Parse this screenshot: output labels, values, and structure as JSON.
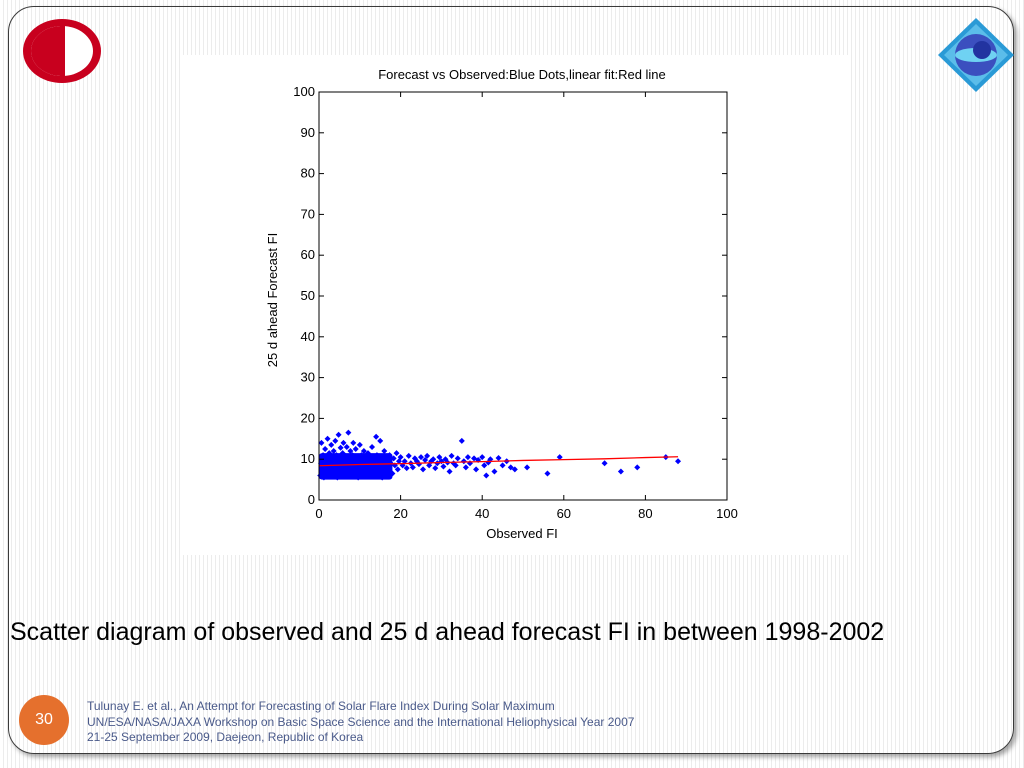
{
  "slide": {
    "caption": "Scatter diagram of observed and 25 d ahead forecast FI in between 1998-2002",
    "page_number": "30",
    "footer": [
      "Tulunay E. et al., An Attempt for Forecasting of Solar Flare Index During Solar Maximum",
      "UN/ESA/NASA/JAXA Workshop on Basic Space Science and the International Heliophysical Year 2007",
      "21-25 September 2009, Daejeon, Republic of Korea"
    ],
    "colors": {
      "accent": "#e5702d",
      "footer_text": "#4a5a8a",
      "left_logo": "#c8001e",
      "right_logo": "#2a9ad6"
    },
    "icons": {
      "left_logo": "university-logo-icon",
      "right_logo": "organization-logo-icon"
    }
  },
  "chart_data": {
    "type": "scatter",
    "title": "Forecast vs Observed:Blue Dots,linear fit:Red line",
    "xlabel": "Observed FI",
    "ylabel": "25 d ahead Forecast FI",
    "xlim": [
      0,
      100
    ],
    "ylim": [
      0,
      100
    ],
    "xticks": [
      "0",
      "20",
      "40",
      "60",
      "80",
      "100"
    ],
    "yticks": [
      "0",
      "10",
      "20",
      "30",
      "40",
      "50",
      "60",
      "70",
      "80",
      "90",
      "100"
    ],
    "grid": false,
    "series": [
      {
        "kind": "points",
        "color": "#0000ff",
        "marker": "diamond",
        "points": [
          [
            0.3,
            6
          ],
          [
            0.5,
            9
          ],
          [
            0.6,
            14
          ],
          [
            0.8,
            7.5
          ],
          [
            1,
            11
          ],
          [
            1.2,
            5.5
          ],
          [
            1.3,
            8
          ],
          [
            1.5,
            12.5
          ],
          [
            1.6,
            10
          ],
          [
            1.8,
            6.5
          ],
          [
            2,
            9.5
          ],
          [
            2.1,
            15
          ],
          [
            2.3,
            7
          ],
          [
            2.5,
            11.5
          ],
          [
            2.6,
            5.8
          ],
          [
            2.8,
            8.8
          ],
          [
            3,
            13.5
          ],
          [
            3.1,
            10.5
          ],
          [
            3.3,
            6.2
          ],
          [
            3.5,
            9
          ],
          [
            3.6,
            12
          ],
          [
            3.8,
            7.8
          ],
          [
            4,
            14.5
          ],
          [
            4.1,
            8.5
          ],
          [
            4.3,
            11
          ],
          [
            4.5,
            5.5
          ],
          [
            4.6,
            10
          ],
          [
            4.8,
            16
          ],
          [
            5,
            7
          ],
          [
            5.1,
            9.5
          ],
          [
            5.3,
            12.8
          ],
          [
            5.5,
            6.5
          ],
          [
            5.6,
            8
          ],
          [
            5.8,
            11.5
          ],
          [
            6,
            14
          ],
          [
            6.1,
            9
          ],
          [
            6.3,
            7.2
          ],
          [
            6.5,
            10.8
          ],
          [
            6.6,
            5.8
          ],
          [
            6.8,
            13
          ],
          [
            7,
            8.5
          ],
          [
            7.2,
            16.5
          ],
          [
            7.3,
            10
          ],
          [
            7.5,
            6.8
          ],
          [
            7.7,
            12
          ],
          [
            7.8,
            9.2
          ],
          [
            8,
            7.5
          ],
          [
            8.2,
            11
          ],
          [
            8.4,
            14
          ],
          [
            8.5,
            6
          ],
          [
            8.7,
            9.8
          ],
          [
            8.9,
            8
          ],
          [
            9,
            12.5
          ],
          [
            9.2,
            7
          ],
          [
            9.4,
            10.5
          ],
          [
            9.6,
            5.5
          ],
          [
            9.8,
            9
          ],
          [
            10,
            13.5
          ],
          [
            10.2,
            8.2
          ],
          [
            10.4,
            11
          ],
          [
            10.6,
            6.5
          ],
          [
            10.8,
            9.5
          ],
          [
            11,
            12
          ],
          [
            11.2,
            7.8
          ],
          [
            11.4,
            10
          ],
          [
            11.6,
            8.8
          ],
          [
            11.8,
            6.2
          ],
          [
            12,
            11.5
          ],
          [
            12.3,
            9
          ],
          [
            12.5,
            7
          ],
          [
            12.8,
            10.5
          ],
          [
            13,
            13
          ],
          [
            13.2,
            8
          ],
          [
            13.5,
            6.5
          ],
          [
            13.8,
            9.5
          ],
          [
            14,
            15.5
          ],
          [
            14.2,
            11
          ],
          [
            14.5,
            7.5
          ],
          [
            14.8,
            10
          ],
          [
            15,
            14.5
          ],
          [
            15.2,
            8.5
          ],
          [
            15.5,
            5.5
          ],
          [
            15.8,
            9.8
          ],
          [
            16,
            12
          ],
          [
            16.3,
            7.2
          ],
          [
            16.6,
            10.5
          ],
          [
            17,
            8
          ],
          [
            17.3,
            11
          ],
          [
            17.6,
            9
          ],
          [
            18,
            6.5
          ],
          [
            18.3,
            10.2
          ],
          [
            18.6,
            8.5
          ],
          [
            19,
            11.5
          ],
          [
            19.3,
            7.5
          ],
          [
            19.6,
            9.5
          ],
          [
            20,
            10.5
          ],
          [
            20.5,
            8.5
          ],
          [
            21,
            9.5
          ],
          [
            21.5,
            7.8
          ],
          [
            22,
            10.8
          ],
          [
            22.5,
            9
          ],
          [
            23,
            8
          ],
          [
            23.5,
            10.2
          ],
          [
            24,
            9.5
          ],
          [
            24.5,
            8.8
          ],
          [
            25,
            10.5
          ],
          [
            25.5,
            7.5
          ],
          [
            26,
            9.8
          ],
          [
            26.5,
            10.8
          ],
          [
            27,
            8.5
          ],
          [
            27.5,
            9.5
          ],
          [
            28,
            10
          ],
          [
            28.5,
            7.8
          ],
          [
            29,
            9
          ],
          [
            29.5,
            10.5
          ],
          [
            30,
            9.5
          ],
          [
            30.5,
            8.2
          ],
          [
            31,
            10
          ],
          [
            31.5,
            9.2
          ],
          [
            32,
            7
          ],
          [
            32.5,
            10.8
          ],
          [
            33,
            9
          ],
          [
            33.5,
            8.5
          ],
          [
            34,
            10.2
          ],
          [
            35,
            14.5
          ],
          [
            35.5,
            9.5
          ],
          [
            36,
            8
          ],
          [
            36.5,
            10.5
          ],
          [
            37,
            9
          ],
          [
            38,
            10.2
          ],
          [
            38.5,
            7.5
          ],
          [
            39,
            9.8
          ],
          [
            40,
            10.5
          ],
          [
            40.5,
            8.5
          ],
          [
            41,
            6
          ],
          [
            41.5,
            9.2
          ],
          [
            42,
            10
          ],
          [
            43,
            7
          ],
          [
            44,
            10.3
          ],
          [
            45,
            8.5
          ],
          [
            46,
            9.5
          ],
          [
            47,
            8
          ],
          [
            48,
            7.5
          ],
          [
            51,
            8
          ],
          [
            56,
            6.5
          ],
          [
            59,
            10.5
          ],
          [
            70,
            9
          ],
          [
            74,
            7
          ],
          [
            78,
            8
          ],
          [
            85,
            10.5
          ],
          [
            88,
            9.5
          ]
        ]
      },
      {
        "kind": "line",
        "color": "#ff0000",
        "points": [
          [
            0,
            8.4
          ],
          [
            10,
            8.7
          ],
          [
            20,
            8.9
          ],
          [
            30,
            9.2
          ],
          [
            40,
            9.4
          ],
          [
            50,
            9.7
          ],
          [
            60,
            9.9
          ],
          [
            70,
            10.1
          ],
          [
            80,
            10.4
          ],
          [
            88,
            10.6
          ]
        ]
      }
    ],
    "dense_cluster": {
      "color": "#0000ff",
      "x_range": [
        0,
        18
      ],
      "y_range": [
        5,
        11.5
      ]
    }
  }
}
